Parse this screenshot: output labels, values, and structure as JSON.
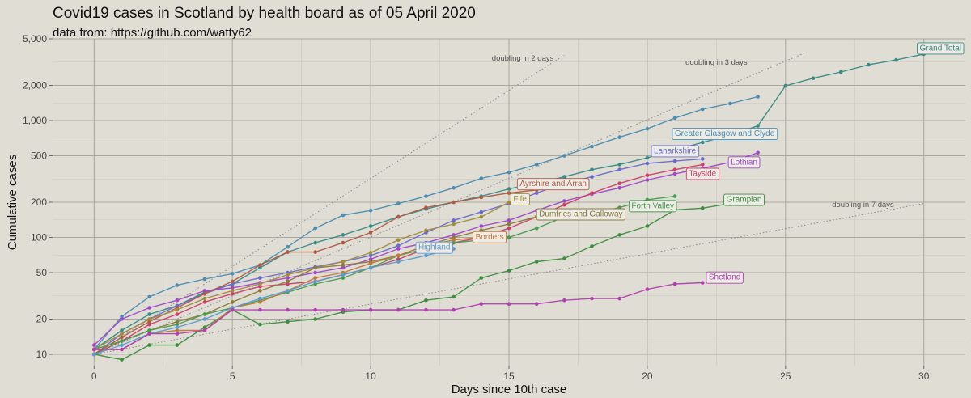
{
  "title": "Covid19 cases in Scotland by health board as of 05 April 2020",
  "subtitle": "data from: https://github.com/watty62",
  "chart_data": {
    "type": "line",
    "scale_y": "log10",
    "xlabel": "Days since 10th case",
    "ylabel": "Cumulative cases",
    "xlim": [
      -1.5,
      31.5
    ],
    "ylim": [
      8,
      5000
    ],
    "x_ticks": [
      0,
      5,
      10,
      15,
      20,
      25,
      30
    ],
    "x_tick_labels": [
      "0",
      "5",
      "10",
      "15",
      "20",
      "25",
      "30"
    ],
    "y_ticks": [
      10,
      20,
      50,
      100,
      200,
      500,
      1000,
      2000,
      5000
    ],
    "y_tick_labels": [
      "10",
      "20",
      "50",
      "100",
      "200",
      "500",
      "1,000",
      "2,000",
      "5,000"
    ],
    "guides": [
      {
        "name": "doubling in 2 days",
        "label": "doubling in 2 days",
        "doubling_days": 2,
        "x_end": 17.2,
        "label_x": 15.5,
        "label_y": 3400
      },
      {
        "name": "doubling in 3 days",
        "label": "doubling in 3 days",
        "doubling_days": 3,
        "x_end": 25.8,
        "label_x": 22.5,
        "label_y": 3150
      },
      {
        "name": "doubling in 7 days",
        "label": "doubling in 7 days",
        "doubling_days": 7,
        "x_end": 30,
        "label_x": 27.8,
        "label_y": 190
      }
    ],
    "series": [
      {
        "name": "Grand Total",
        "color": "#3a8a86",
        "x": [
          0,
          1,
          2,
          3,
          4,
          5,
          6,
          7,
          8,
          9,
          10,
          11,
          12,
          13,
          14,
          15,
          16,
          17,
          18,
          19,
          20,
          21,
          22,
          23,
          24,
          25,
          26,
          27,
          28,
          29,
          30
        ],
        "values": [
          11,
          16,
          22,
          26,
          34,
          40,
          55,
          75,
          90,
          105,
          125,
          150,
          175,
          200,
          225,
          260,
          290,
          330,
          380,
          420,
          480,
          560,
          650,
          750,
          900,
          1980,
          2300,
          2600,
          3000,
          3300,
          3700
        ],
        "label": "Grand Total",
        "label_x": 30.6,
        "label_y": 4200
      },
      {
        "name": "Greater Glasgow and Clyde",
        "color": "#4b8cb0",
        "x": [
          0,
          1,
          2,
          3,
          4,
          5,
          6,
          7,
          8,
          9,
          10,
          11,
          12,
          13,
          14,
          15,
          16,
          17,
          18,
          19,
          20,
          21,
          22,
          23,
          24
        ],
        "values": [
          11,
          21,
          31,
          39,
          44,
          49,
          58,
          83,
          120,
          155,
          170,
          195,
          225,
          265,
          320,
          360,
          420,
          500,
          600,
          720,
          850,
          1050,
          1250,
          1400,
          1600
        ],
        "label": "Greater Glasgow and Clyde",
        "label_x": 22.8,
        "label_y": 780
      },
      {
        "name": "Lanarkshire",
        "color": "#6a6acb",
        "x": [
          0,
          1,
          2,
          3,
          4,
          5,
          6,
          7,
          8,
          9,
          10,
          11,
          12,
          13,
          14,
          15,
          16,
          17,
          18,
          19,
          20,
          21,
          22
        ],
        "values": [
          10,
          15,
          20,
          26,
          33,
          40,
          45,
          50,
          56,
          62,
          70,
          85,
          110,
          140,
          165,
          195,
          240,
          290,
          330,
          380,
          430,
          450,
          470
        ],
        "label": "Lanarkshire",
        "label_x": 21.0,
        "label_y": 555
      },
      {
        "name": "Lothian",
        "color": "#a246c8",
        "x": [
          0,
          1,
          2,
          3,
          4,
          5,
          6,
          7,
          8,
          9,
          10,
          11,
          12,
          13,
          14,
          15,
          16,
          17,
          18,
          19,
          20,
          21,
          22,
          23,
          24
        ],
        "values": [
          12,
          20,
          25,
          29,
          35,
          37,
          41,
          45,
          50,
          55,
          65,
          80,
          90,
          105,
          125,
          140,
          170,
          205,
          235,
          265,
          310,
          350,
          390,
          440,
          530
        ],
        "label": "Lothian",
        "label_x": 23.5,
        "label_y": 445
      },
      {
        "name": "Tayside",
        "color": "#c8406a",
        "x": [
          0,
          1,
          2,
          3,
          4,
          5,
          6,
          7,
          8,
          9,
          10,
          11,
          12,
          13,
          14,
          15,
          16,
          17,
          18,
          19,
          20,
          21,
          22
        ],
        "values": [
          10,
          13,
          18,
          22,
          28,
          33,
          38,
          40,
          42,
          48,
          55,
          65,
          80,
          90,
          100,
          120,
          150,
          190,
          240,
          290,
          340,
          380,
          420
        ],
        "label": "Tayside",
        "label_x": 22.0,
        "label_y": 355
      },
      {
        "name": "Ayrshire and Arran",
        "color": "#b05a44",
        "x": [
          0,
          1,
          2,
          3,
          4,
          5,
          6,
          7,
          8,
          9,
          10,
          11,
          12,
          13,
          14,
          15,
          16,
          17
        ],
        "values": [
          10,
          14,
          19,
          25,
          33,
          42,
          58,
          75,
          75,
          90,
          110,
          150,
          180,
          200,
          220,
          240,
          255,
          270
        ],
        "label": "Ayrshire and Arran",
        "label_x": 16.6,
        "label_y": 290
      },
      {
        "name": "Fife",
        "color": "#a08c3c",
        "x": [
          0,
          1,
          2,
          3,
          4,
          5,
          6,
          7,
          8,
          9,
          10,
          11,
          12,
          13,
          14,
          15
        ],
        "values": [
          11,
          15,
          20,
          24,
          30,
          35,
          40,
          48,
          55,
          62,
          74,
          95,
          115,
          130,
          150,
          200
        ],
        "label": "Fife",
        "label_x": 15.4,
        "label_y": 215
      },
      {
        "name": "Dumfries and Galloway",
        "color": "#8a7a3a",
        "x": [
          0,
          1,
          2,
          3,
          4,
          5,
          6,
          7,
          8,
          9,
          10,
          11,
          12,
          13,
          14,
          15,
          16
        ],
        "values": [
          10,
          13,
          16,
          19,
          22,
          28,
          35,
          42,
          55,
          58,
          62,
          70,
          85,
          100,
          115,
          130,
          150
        ],
        "label": "Dumfries and Galloway",
        "label_x": 17.6,
        "label_y": 160
      },
      {
        "name": "Forth Valley",
        "color": "#4a9a50",
        "x": [
          0,
          1,
          2,
          3,
          4,
          5,
          6,
          7,
          8,
          9,
          10,
          11,
          12,
          13,
          14,
          15,
          16,
          17,
          18,
          19,
          20,
          21
        ],
        "values": [
          11,
          13,
          16,
          18,
          22,
          25,
          29,
          34,
          40,
          45,
          55,
          70,
          80,
          90,
          95,
          100,
          120,
          150,
          160,
          180,
          210,
          225
        ],
        "label": "Forth Valley",
        "label_x": 20.2,
        "label_y": 188
      },
      {
        "name": "Grampian",
        "color": "#3e8e40",
        "x": [
          0,
          1,
          2,
          3,
          4,
          5,
          6,
          7,
          8,
          9,
          10,
          11,
          12,
          13,
          14,
          15,
          16,
          17,
          18,
          19,
          20,
          21,
          22,
          23
        ],
        "values": [
          10,
          9,
          12,
          12,
          17,
          24,
          18,
          19,
          20,
          23,
          24,
          24,
          29,
          31,
          45,
          52,
          62,
          66,
          84,
          105,
          125,
          172,
          178,
          195
        ],
        "label": "Grampian",
        "label_x": 23.5,
        "label_y": 213
      },
      {
        "name": "Borders",
        "color": "#c07838",
        "x": [
          0,
          1,
          2,
          3,
          4,
          5,
          6,
          7,
          8,
          9,
          10,
          11,
          12,
          13,
          14
        ],
        "values": [
          11,
          11,
          15,
          16,
          16,
          25,
          28,
          35,
          45,
          50,
          60,
          70,
          85,
          95,
          100
        ],
        "label": "Borders",
        "label_x": 14.3,
        "label_y": 102
      },
      {
        "name": "Highland",
        "color": "#5a9bd0",
        "x": [
          0,
          1,
          2,
          3,
          4,
          5,
          6,
          7,
          8,
          9,
          10,
          11,
          12,
          13
        ],
        "values": [
          10,
          12,
          15,
          17,
          20,
          25,
          30,
          35,
          42,
          48,
          55,
          62,
          70,
          80
        ],
        "label": "Highland",
        "label_x": 12.3,
        "label_y": 83
      },
      {
        "name": "Shetland",
        "color": "#b040b0",
        "x": [
          0,
          1,
          2,
          3,
          4,
          5,
          6,
          7,
          8,
          9,
          10,
          11,
          12,
          13,
          14,
          15,
          16,
          17,
          18,
          19,
          20,
          21,
          22
        ],
        "values": [
          11,
          11,
          15,
          15,
          16,
          24,
          24,
          24,
          24,
          24,
          24,
          24,
          24,
          24,
          27,
          27,
          27,
          29,
          30,
          30,
          36,
          40,
          41
        ],
        "label": "Shetland",
        "label_x": 22.8,
        "label_y": 46
      }
    ]
  }
}
